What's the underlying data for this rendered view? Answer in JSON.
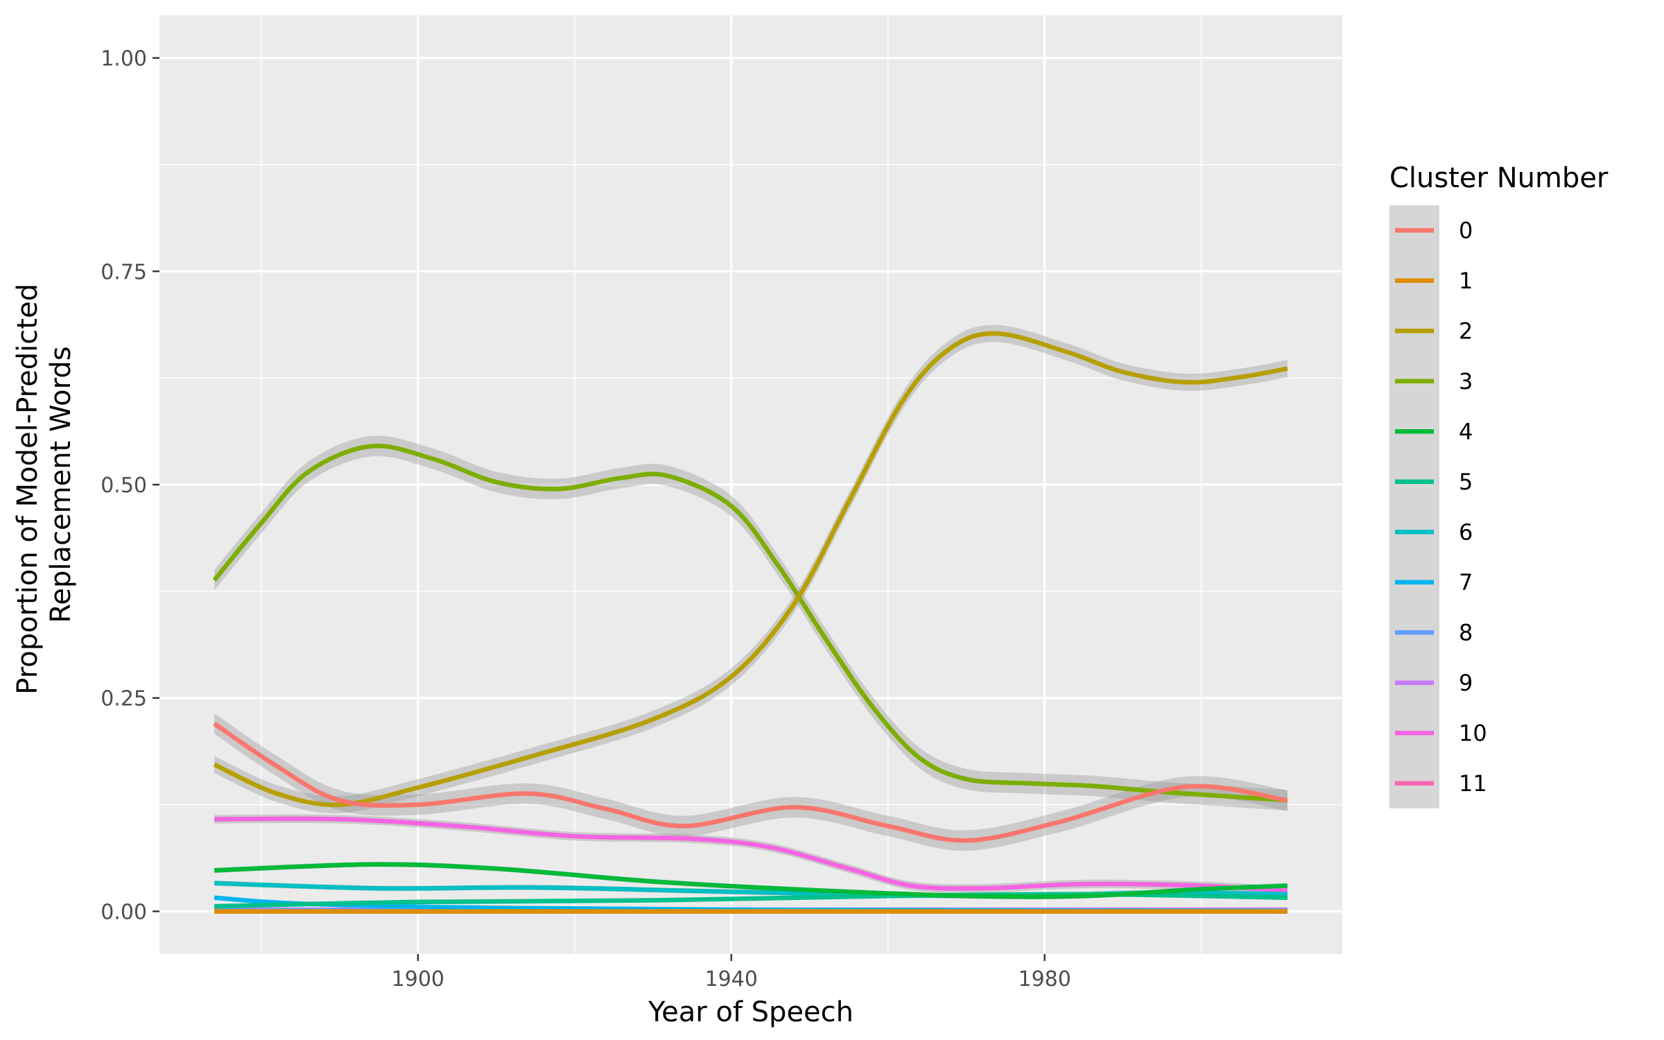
{
  "chart_data": {
    "type": "line",
    "xlabel": "Year of Speech",
    "ylabel_lines": [
      "Proportion of Model-Predicted",
      "Replacement Words"
    ],
    "xlim": [
      1867,
      2018
    ],
    "ylim": [
      -0.05,
      1.05
    ],
    "x_ticks": [
      1900,
      1940,
      1980
    ],
    "x_minor": [
      1880,
      1920,
      1960,
      2000
    ],
    "y_ticks": [
      {
        "value": 0.0,
        "label": "0.00"
      },
      {
        "value": 0.25,
        "label": "0.25"
      },
      {
        "value": 0.5,
        "label": "0.50"
      },
      {
        "value": 0.75,
        "label": "0.75"
      },
      {
        "value": 1.0,
        "label": "1.00"
      }
    ],
    "y_minor": [
      0.125,
      0.375,
      0.625,
      0.875
    ],
    "grid": true,
    "smoothed_with_confidence_band": true,
    "legend": {
      "title": "Cluster Number",
      "position": "right"
    },
    "series": [
      {
        "name": "0",
        "color": "#F8766D",
        "band": 0.012,
        "points": [
          [
            1874,
            0.22
          ],
          [
            1882,
            0.17
          ],
          [
            1890,
            0.13
          ],
          [
            1900,
            0.125
          ],
          [
            1914,
            0.138
          ],
          [
            1924,
            0.12
          ],
          [
            1934,
            0.1
          ],
          [
            1948,
            0.122
          ],
          [
            1960,
            0.1
          ],
          [
            1970,
            0.083
          ],
          [
            1982,
            0.105
          ],
          [
            1998,
            0.146
          ],
          [
            2011,
            0.13
          ]
        ]
      },
      {
        "name": "1",
        "color": "#DE8C00",
        "band": 0.002,
        "points": [
          [
            1874,
            0.0
          ],
          [
            1940,
            0.0
          ],
          [
            2011,
            0.0
          ]
        ]
      },
      {
        "name": "2",
        "color": "#B79F00",
        "band": 0.01,
        "points": [
          [
            1874,
            0.172
          ],
          [
            1882,
            0.138
          ],
          [
            1890,
            0.125
          ],
          [
            1900,
            0.145
          ],
          [
            1915,
            0.183
          ],
          [
            1930,
            0.225
          ],
          [
            1940,
            0.275
          ],
          [
            1948,
            0.36
          ],
          [
            1955,
            0.48
          ],
          [
            1962,
            0.6
          ],
          [
            1968,
            0.66
          ],
          [
            1974,
            0.677
          ],
          [
            1983,
            0.655
          ],
          [
            1990,
            0.632
          ],
          [
            1998,
            0.62
          ],
          [
            2005,
            0.626
          ],
          [
            2011,
            0.636
          ]
        ]
      },
      {
        "name": "3",
        "color": "#7CAE00",
        "band": 0.012,
        "points": [
          [
            1874,
            0.388
          ],
          [
            1880,
            0.455
          ],
          [
            1886,
            0.515
          ],
          [
            1894,
            0.545
          ],
          [
            1902,
            0.53
          ],
          [
            1910,
            0.503
          ],
          [
            1918,
            0.495
          ],
          [
            1926,
            0.508
          ],
          [
            1932,
            0.51
          ],
          [
            1940,
            0.475
          ],
          [
            1946,
            0.405
          ],
          [
            1952,
            0.32
          ],
          [
            1958,
            0.24
          ],
          [
            1964,
            0.18
          ],
          [
            1970,
            0.155
          ],
          [
            1978,
            0.15
          ],
          [
            1986,
            0.147
          ],
          [
            1995,
            0.14
          ],
          [
            2003,
            0.135
          ],
          [
            2011,
            0.13
          ]
        ]
      },
      {
        "name": "4",
        "color": "#00BA38",
        "band": 0.003,
        "points": [
          [
            1874,
            0.048
          ],
          [
            1894,
            0.055
          ],
          [
            1910,
            0.05
          ],
          [
            1930,
            0.035
          ],
          [
            1950,
            0.025
          ],
          [
            1970,
            0.018
          ],
          [
            1985,
            0.018
          ],
          [
            2000,
            0.026
          ],
          [
            2011,
            0.03
          ]
        ]
      },
      {
        "name": "5",
        "color": "#00C08B",
        "band": 0.002,
        "points": [
          [
            1874,
            0.006
          ],
          [
            1900,
            0.011
          ],
          [
            1930,
            0.013
          ],
          [
            1960,
            0.018
          ],
          [
            1985,
            0.02
          ],
          [
            2011,
            0.016
          ]
        ]
      },
      {
        "name": "6",
        "color": "#00BFC4",
        "band": 0.003,
        "points": [
          [
            1874,
            0.033
          ],
          [
            1895,
            0.027
          ],
          [
            1915,
            0.028
          ],
          [
            1935,
            0.024
          ],
          [
            1955,
            0.02
          ],
          [
            1975,
            0.018
          ],
          [
            1995,
            0.022
          ],
          [
            2011,
            0.02
          ]
        ]
      },
      {
        "name": "7",
        "color": "#00B4F0",
        "band": 0.002,
        "points": [
          [
            1874,
            0.016
          ],
          [
            1885,
            0.009
          ],
          [
            1910,
            0.004
          ],
          [
            1940,
            0.002
          ],
          [
            1980,
            0.001
          ],
          [
            2011,
            0.0
          ]
        ]
      },
      {
        "name": "8",
        "color": "#619CFF",
        "band": 0.001,
        "points": [
          [
            1874,
            0.001
          ],
          [
            1940,
            0.001
          ],
          [
            2011,
            0.001
          ]
        ]
      },
      {
        "name": "9",
        "color": "#C77CFF",
        "band": 0.001,
        "points": [
          [
            1874,
            0.002
          ],
          [
            1940,
            0.002
          ],
          [
            2011,
            0.002
          ]
        ]
      },
      {
        "name": "10",
        "color": "#F564E3",
        "band": 0.005,
        "points": [
          [
            1874,
            0.108
          ],
          [
            1890,
            0.108
          ],
          [
            1905,
            0.1
          ],
          [
            1920,
            0.088
          ],
          [
            1935,
            0.085
          ],
          [
            1945,
            0.075
          ],
          [
            1955,
            0.05
          ],
          [
            1963,
            0.03
          ],
          [
            1972,
            0.027
          ],
          [
            1985,
            0.032
          ],
          [
            2000,
            0.03
          ],
          [
            2011,
            0.024
          ]
        ]
      },
      {
        "name": "11",
        "color": "#FF64B0",
        "band": 0.001,
        "points": [
          [
            1874,
            0.0
          ],
          [
            1940,
            0.0
          ],
          [
            2011,
            0.0
          ]
        ]
      }
    ]
  }
}
